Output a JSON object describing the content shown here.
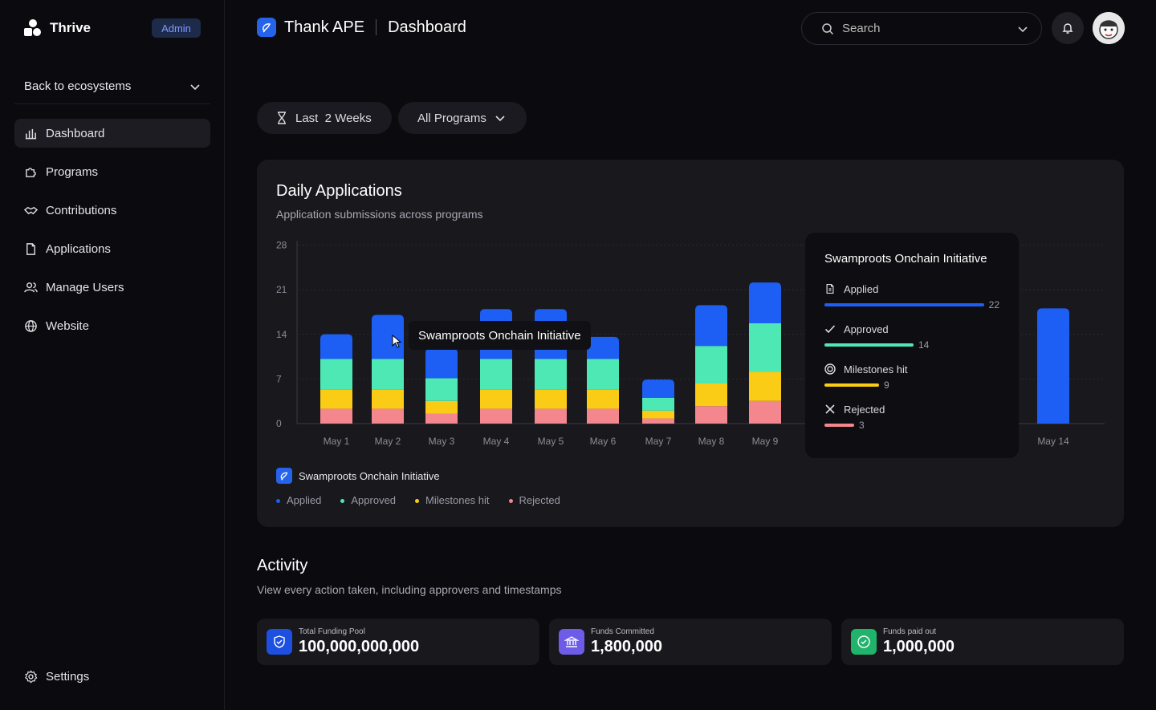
{
  "sidebar": {
    "brand": "Thrive",
    "badge": "Admin",
    "ecosystem": "Back to ecosystems",
    "items": [
      {
        "label": "Dashboard",
        "icon": "bar-chart-icon"
      },
      {
        "label": "Programs",
        "icon": "puzzle-icon"
      },
      {
        "label": "Contributions",
        "icon": "handshake-icon"
      },
      {
        "label": "Applications",
        "icon": "file-icon"
      },
      {
        "label": "Manage Users",
        "icon": "users-icon"
      },
      {
        "label": "Website",
        "icon": "globe-icon"
      }
    ],
    "settings": "Settings"
  },
  "header": {
    "app_name": "Thank APE",
    "page": "Dashboard",
    "search_placeholder": "Search"
  },
  "filters": {
    "range": "Last  2 Weeks",
    "program": "All Programs"
  },
  "card": {
    "title": "Daily Applications",
    "subtitle": "Application submissions across programs",
    "program_legend": "Swamproots Onchain Initiative"
  },
  "chart_data": {
    "type": "bar",
    "stacked": true,
    "categories": [
      "May 1",
      "May 2",
      "May 3",
      "May 4",
      "May 5",
      "May 6",
      "May 7",
      "May 8",
      "May 9",
      "May 14"
    ],
    "yticks": [
      0,
      7,
      14,
      21,
      28
    ],
    "ylim": [
      0,
      30
    ],
    "series": [
      {
        "name": "Rejected",
        "color": "#f4868e",
        "values": [
          2.3,
          2.3,
          1.5,
          2.3,
          2.3,
          2.3,
          0.8,
          2.7,
          3.5,
          0
        ]
      },
      {
        "name": "Milestones hit",
        "color": "#facc15",
        "values": [
          3,
          3,
          2,
          3,
          3,
          3,
          1.2,
          3.5,
          4.5,
          0
        ]
      },
      {
        "name": "Approved",
        "color": "#4ee8b5",
        "values": [
          4.7,
          4.7,
          3.5,
          4.7,
          4.7,
          4.7,
          2,
          5.8,
          7.5,
          0
        ]
      },
      {
        "name": "Applied",
        "color": "#1d5ef5",
        "values": [
          3.8,
          6.8,
          4.6,
          7.7,
          7.7,
          3.4,
          2.8,
          6.3,
          6.3,
          17.8
        ]
      }
    ],
    "grid": true
  },
  "tooltips": {
    "hover_label": "Swamproots Onchain Initiative",
    "detail": {
      "title": "Swamproots Onchain Initiative",
      "rows": [
        {
          "label": "Applied",
          "value": "22",
          "color": "#1d5ef5",
          "icon": "file-icon",
          "fraction": 1.0
        },
        {
          "label": "Approved",
          "value": "14",
          "color": "#4ee8b5",
          "icon": "check-icon",
          "fraction": 0.56
        },
        {
          "label": "Milestones hit",
          "value": "9",
          "color": "#facc15",
          "icon": "target-icon",
          "fraction": 0.34
        },
        {
          "label": "Rejected",
          "value": "3",
          "color": "#f4868e",
          "icon": "x-icon",
          "fraction": 0.19
        }
      ]
    }
  },
  "activity": {
    "title": "Activity",
    "subtitle": "View every action taken, including approvers and timestamps",
    "stats": [
      {
        "label": "Total Funding Pool",
        "value": "100,000,000,000",
        "color": "#1d4fe0",
        "icon": "shield-icon"
      },
      {
        "label": "Funds Committed",
        "value": "1,800,000",
        "color": "#6d5ce8",
        "icon": "bank-icon"
      },
      {
        "label": "Funds paid out",
        "value": "1,000,000",
        "color": "#1fb36b",
        "icon": "check-circle-icon"
      }
    ]
  }
}
